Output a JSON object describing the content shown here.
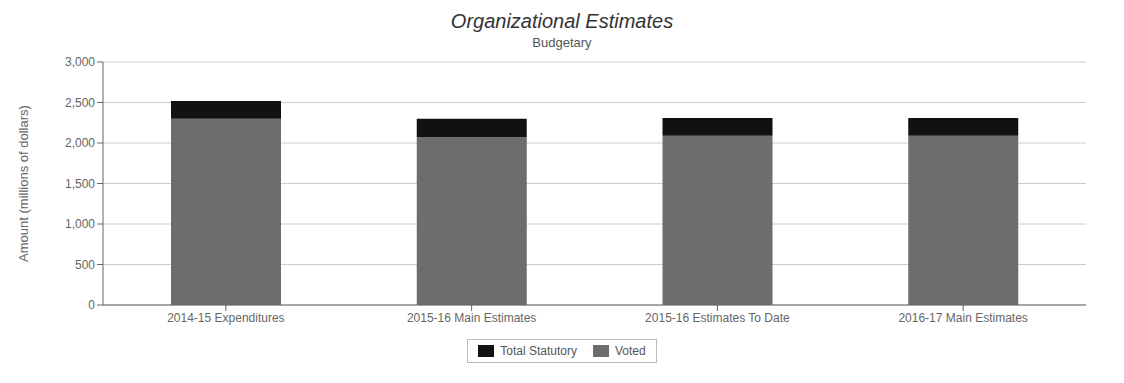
{
  "chart_data": {
    "type": "bar",
    "stacked": true,
    "title": "Organizational Estimates",
    "subtitle": "Budgetary",
    "ylabel": "Amount (millions of dollars)",
    "categories": [
      "2014-15 Expenditures",
      "2015-16 Main Estimates",
      "2015-16 Estimates To Date",
      "2016-17 Main Estimates"
    ],
    "series": [
      {
        "name": "Voted",
        "color": "#6d6d6d",
        "values": [
          2300,
          2070,
          2090,
          2090
        ]
      },
      {
        "name": "Total Statutory",
        "color": "#111111",
        "values": [
          220,
          230,
          220,
          220
        ]
      }
    ],
    "ylim": [
      0,
      3000
    ],
    "yticks": [
      0,
      500,
      {
        "value": 1000,
        "label": "1,000"
      },
      {
        "value": 1500,
        "label": "1,500"
      },
      {
        "value": 2000,
        "label": "2,000"
      },
      {
        "value": 2500,
        "label": "2,500"
      },
      {
        "value": 3000,
        "label": "3,000"
      }
    ],
    "grid": true,
    "legend": "bottom"
  }
}
